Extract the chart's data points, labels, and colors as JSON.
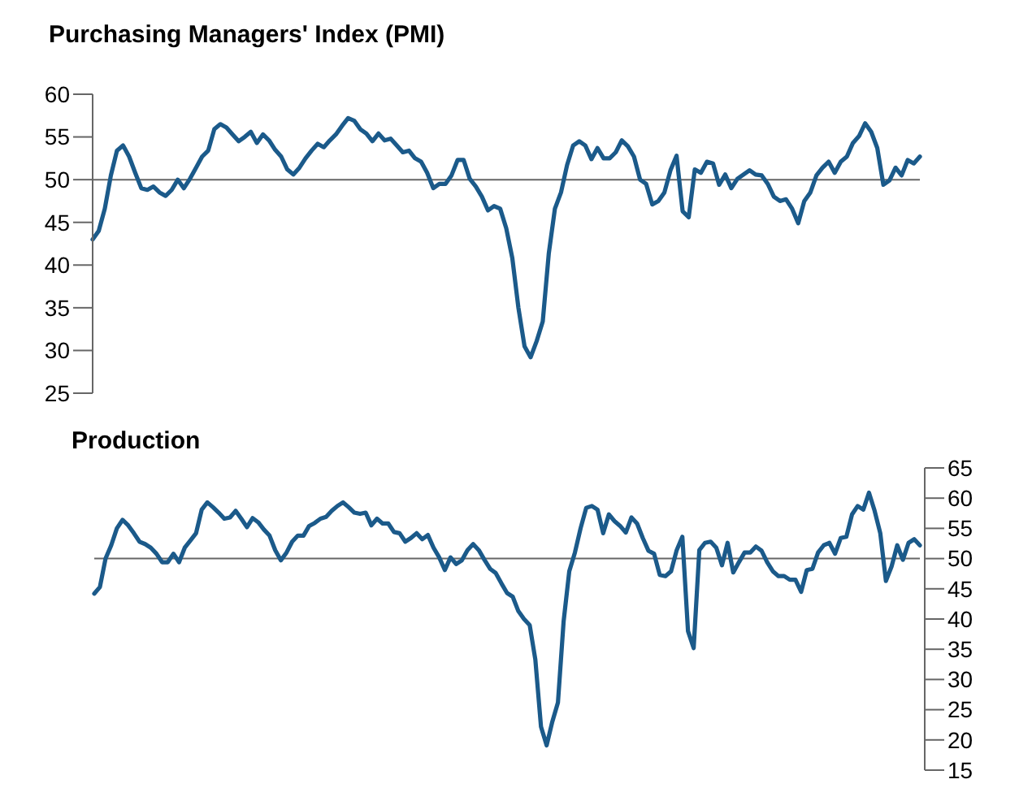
{
  "chart_data": [
    {
      "type": "line",
      "title": "Purchasing Managers' Index (PMI)",
      "ylim": [
        25,
        60
      ],
      "yticks": [
        25,
        30,
        35,
        40,
        45,
        50,
        55,
        60
      ],
      "ref_lines": [
        {
          "axis": "y",
          "value": 50,
          "color": "#666666"
        }
      ],
      "categories": [
        null,
        null,
        null,
        null,
        null,
        null,
        null,
        null,
        null,
        null,
        null,
        null,
        null,
        null,
        null,
        null,
        null,
        null,
        null,
        null,
        null,
        null,
        null,
        null,
        null,
        null,
        null,
        null,
        null,
        null,
        null,
        null,
        null,
        null,
        null,
        null,
        null,
        null,
        null,
        null,
        null,
        null,
        null,
        null,
        null,
        null,
        null,
        null,
        null,
        null,
        null,
        null,
        null,
        null,
        null,
        null,
        null,
        null,
        null,
        null,
        null,
        null,
        null,
        null,
        null,
        null,
        null,
        null,
        null,
        null,
        null,
        null,
        null,
        null,
        null,
        null,
        null,
        null,
        null,
        null,
        null,
        null,
        null,
        null,
        null,
        null,
        null,
        null,
        null,
        null,
        null,
        null,
        null,
        null,
        null,
        null,
        null,
        null,
        null,
        null,
        null,
        null,
        null,
        null,
        null,
        null,
        null,
        null,
        null,
        null,
        null,
        null,
        null,
        null,
        null,
        null,
        null,
        null,
        null,
        null,
        null,
        null,
        null,
        null,
        null,
        null,
        null,
        null,
        null,
        null,
        null,
        null,
        null,
        null,
        null,
        null,
        null
      ],
      "series": [
        {
          "color": "#1b5a8a",
          "values": [
            43.0,
            44.0,
            46.6,
            50.5,
            53.4,
            54.0,
            52.7,
            50.8,
            49.0,
            48.8,
            49.2,
            48.5,
            48.1,
            48.8,
            50.0,
            49.0,
            50.1,
            51.4,
            52.7,
            53.4,
            55.9,
            56.5,
            56.1,
            55.3,
            54.5,
            55.0,
            55.6,
            54.3,
            55.3,
            54.6,
            53.5,
            52.7,
            51.2,
            50.6,
            51.4,
            52.5,
            53.4,
            54.2,
            53.8,
            54.6,
            55.3,
            56.3,
            57.2,
            56.9,
            55.9,
            55.4,
            54.5,
            55.4,
            54.6,
            54.8,
            54.0,
            53.2,
            53.4,
            52.5,
            52.1,
            50.8,
            49.0,
            49.5,
            49.5,
            50.5,
            52.3,
            52.3,
            50.1,
            49.2,
            48.0,
            46.4,
            46.9,
            46.6,
            44.3,
            40.8,
            35.0,
            30.5,
            29.2,
            31.1,
            33.4,
            41.4,
            46.6,
            48.5,
            51.7,
            54.0,
            54.5,
            54.0,
            52.4,
            53.7,
            52.5,
            52.5,
            53.2,
            54.6,
            53.9,
            52.7,
            50.0,
            49.5,
            47.1,
            47.5,
            48.5,
            51.1,
            52.8,
            46.3,
            45.6,
            51.2,
            50.8,
            52.1,
            51.9,
            49.4,
            50.6,
            49.0,
            50.1,
            50.6,
            51.1,
            50.6,
            50.5,
            49.5,
            48.0,
            47.5,
            47.7,
            46.6,
            44.9,
            47.5,
            48.5,
            50.5,
            51.4,
            52.1,
            50.8,
            52.1,
            52.7,
            54.3,
            55.1,
            56.6,
            55.6,
            53.7,
            49.4,
            49.9,
            51.4,
            50.5,
            52.3,
            51.9,
            52.7
          ]
        }
      ]
    },
    {
      "type": "line",
      "title": "Production",
      "ylim": [
        15,
        65
      ],
      "yticks": [
        15,
        20,
        25,
        30,
        35,
        40,
        45,
        50,
        55,
        60,
        65
      ],
      "ref_lines": [
        {
          "axis": "y",
          "value": 50,
          "color": "#666666"
        }
      ],
      "categories": [
        null,
        null,
        null,
        null,
        null,
        null,
        null,
        null,
        null,
        null,
        null,
        null,
        null,
        null,
        null,
        null,
        null,
        null,
        null,
        null,
        null,
        null,
        null,
        null,
        null,
        null,
        null,
        null,
        null,
        null,
        null,
        null,
        null,
        null,
        null,
        null,
        null,
        null,
        null,
        null,
        null,
        null,
        null,
        null,
        null,
        null,
        null,
        null,
        null,
        null,
        null,
        null,
        null,
        null,
        null,
        null,
        null,
        null,
        null,
        null,
        null,
        null,
        null,
        null,
        null,
        null,
        null,
        null,
        null,
        null,
        null,
        null,
        null,
        null,
        null,
        null,
        null,
        null,
        null,
        null,
        null,
        null,
        null,
        null,
        null,
        null,
        null,
        null,
        null,
        null,
        null,
        null,
        null,
        null,
        null,
        null,
        null,
        null,
        null,
        null,
        null,
        null,
        null,
        null,
        null,
        null,
        null,
        null,
        null,
        null,
        null,
        null,
        null,
        null,
        null,
        null,
        null,
        null,
        null,
        null,
        null,
        null,
        null,
        null,
        null,
        null,
        null,
        null,
        null,
        null,
        null,
        null,
        null,
        null,
        null,
        null,
        null,
        null,
        null,
        null,
        null,
        null,
        null,
        null,
        null,
        null,
        null
      ],
      "series": [
        {
          "color": "#1b5a8a",
          "values": [
            44.2,
            45.3,
            50.0,
            52.2,
            55.0,
            56.4,
            55.5,
            54.2,
            52.8,
            52.4,
            51.8,
            50.8,
            49.4,
            49.4,
            50.8,
            49.4,
            51.8,
            53.0,
            54.2,
            58.1,
            59.3,
            58.5,
            57.6,
            56.6,
            56.8,
            57.9,
            56.6,
            55.2,
            56.7,
            56.0,
            54.8,
            53.8,
            51.4,
            49.7,
            51.0,
            52.8,
            53.8,
            53.8,
            55.4,
            55.9,
            56.6,
            56.9,
            57.9,
            58.7,
            59.3,
            58.5,
            57.6,
            57.4,
            57.6,
            55.5,
            56.6,
            55.8,
            55.8,
            54.4,
            54.2,
            52.8,
            53.4,
            54.2,
            53.2,
            53.9,
            51.8,
            50.2,
            48.1,
            50.2,
            49.1,
            49.7,
            51.4,
            52.4,
            51.4,
            49.8,
            48.3,
            47.6,
            45.9,
            44.3,
            43.7,
            41.3,
            40.0,
            39.0,
            33.3,
            22.2,
            19.1,
            23.0,
            26.2,
            39.6,
            47.9,
            51.0,
            55.0,
            58.4,
            58.7,
            58.1,
            54.2,
            57.3,
            56.2,
            55.4,
            54.3,
            56.8,
            55.8,
            53.4,
            51.3,
            50.8,
            47.3,
            47.1,
            47.9,
            51.4,
            53.6,
            38.0,
            35.2,
            51.4,
            52.6,
            52.8,
            51.8,
            48.9,
            52.6,
            47.7,
            49.4,
            51.0,
            51.0,
            52.0,
            51.3,
            49.4,
            47.9,
            47.1,
            47.1,
            46.5,
            46.5,
            44.5,
            48.1,
            48.3,
            51.0,
            52.2,
            52.6,
            50.8,
            53.4,
            53.6,
            57.3,
            58.7,
            58.1,
            60.9,
            57.9,
            54.2,
            46.3,
            48.7,
            52.2,
            49.8,
            52.6,
            53.2,
            52.2
          ]
        }
      ]
    }
  ]
}
